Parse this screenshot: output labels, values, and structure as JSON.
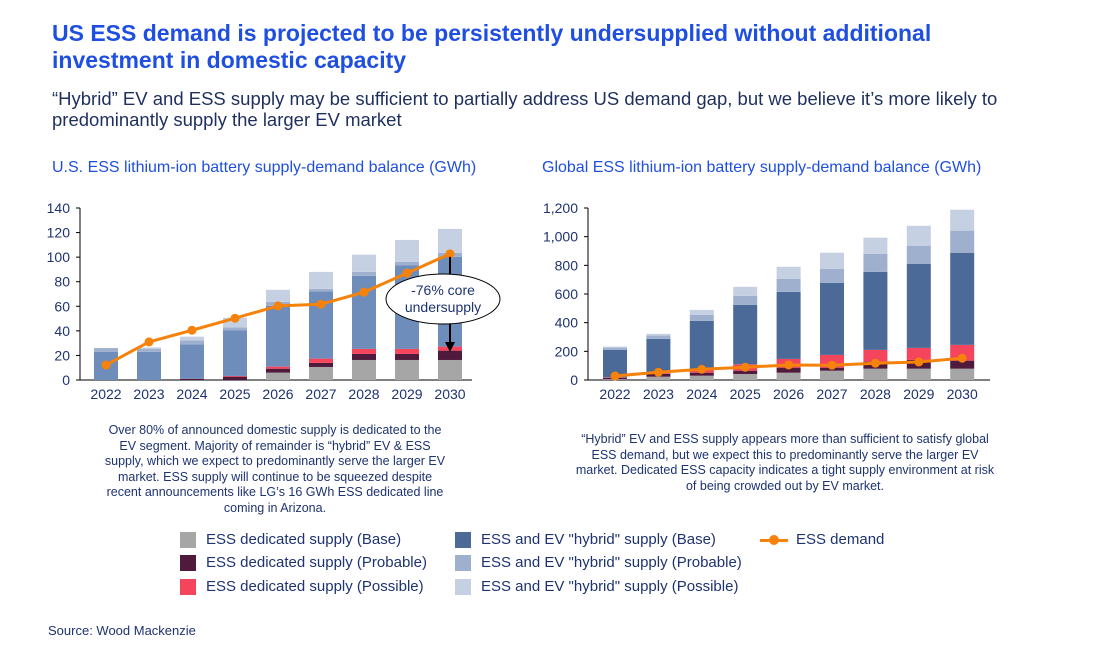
{
  "header": {
    "title": "US ESS demand is projected to be persistently undersupplied without additional investment in domestic capacity",
    "subtitle": "“Hybrid” EV and ESS supply may be sufficient to partially address US demand gap, but we believe it’s more likely to predominantly supply the larger EV market"
  },
  "colors": {
    "ded_base": "#a6a6a6",
    "ded_prob": "#4f1a3c",
    "ded_poss": "#f5455c",
    "hyb_base": "#4b6a98",
    "hyb_prob": "#9eb0cd",
    "hyb_poss": "#c5d0e2",
    "hyb_base_us": "#6f8dbb",
    "demand": "#f5820a",
    "title": "#1f4fe0",
    "text": "#1e3370"
  },
  "chart_data": [
    {
      "type": "bar",
      "stacked": true,
      "title": "U.S. ESS lithium-ion battery supply-demand balance (GWh)",
      "categories": [
        "2022",
        "2023",
        "2024",
        "2025",
        "2026",
        "2027",
        "2028",
        "2029",
        "2030"
      ],
      "ylim": [
        0,
        140
      ],
      "yticks": [
        "0",
        "20",
        "40",
        "60",
        "80",
        "100",
        "120",
        "140"
      ],
      "grid": false,
      "series": [
        {
          "name": "ESS dedicated supply (Base)",
          "key": "ded_base",
          "values": [
            0,
            0,
            0,
            0,
            6,
            10.6,
            16.3,
            16.3,
            16.3
          ]
        },
        {
          "name": "ESS dedicated supply (Probable)",
          "key": "ded_prob",
          "values": [
            0,
            0,
            1,
            2.7,
            3.2,
            3.3,
            4.9,
            4.9,
            7.6
          ]
        },
        {
          "name": "ESS dedicated supply (Possible)",
          "key": "ded_poss",
          "values": [
            0,
            0,
            0,
            0.6,
            1.7,
            3.5,
            4.1,
            4.1,
            3.3
          ]
        },
        {
          "name": "ESS and EV \"hybrid\" supply (Base)",
          "key": "hyb_base",
          "values": [
            23,
            23,
            28,
            37,
            49.4,
            54.6,
            59.5,
            67.9,
            73.1
          ]
        },
        {
          "name": "ESS and EV \"hybrid\" supply (Probable)",
          "key": "hyb_prob",
          "values": [
            3,
            2.5,
            3.3,
            2.4,
            3.3,
            2.2,
            3.2,
            3,
            3.2
          ]
        },
        {
          "name": "ESS and EV \"hybrid\" supply (Possible)",
          "key": "hyb_poss",
          "values": [
            0,
            1,
            3,
            8,
            9.8,
            13.8,
            14,
            17.8,
            19.5
          ]
        }
      ],
      "line": {
        "name": "ESS demand",
        "values": [
          12.2,
          31,
          40.5,
          50.3,
          60.3,
          61.7,
          71.5,
          87,
          102.7
        ]
      },
      "annotation": "-76% core undersupply",
      "caption": "Over 80% of announced domestic supply is dedicated to the EV segment. Majority of remainder is “hybrid” EV & ESS supply, which we expect to predominantly serve the larger EV market. ESS supply will continue to be squeezed despite recent announcements like LG’s 16 GWh ESS dedicated line coming in Arizona."
    },
    {
      "type": "bar",
      "stacked": true,
      "title": "Global ESS lithium-ion battery supply-demand balance (GWh)",
      "categories": [
        "2022",
        "2023",
        "2024",
        "2025",
        "2026",
        "2027",
        "2028",
        "2029",
        "2030"
      ],
      "ylim": [
        0,
        1200
      ],
      "yticks": [
        "0",
        "200",
        "400",
        "600",
        "800",
        "1,000",
        "1,200"
      ],
      "grid": false,
      "series": [
        {
          "name": "ESS dedicated supply (Base)",
          "key": "ded_base",
          "values": [
            5,
            23,
            30,
            42,
            51,
            65,
            79,
            79,
            79
          ]
        },
        {
          "name": "ESS dedicated supply (Probable)",
          "key": "ded_prob",
          "values": [
            10,
            19,
            21,
            23,
            35,
            21,
            49,
            61,
            56
          ]
        },
        {
          "name": "ESS dedicated supply (Possible)",
          "key": "ded_poss",
          "values": [
            3,
            5,
            19,
            45,
            61,
            89,
            82,
            84,
            110
          ]
        },
        {
          "name": "ESS and EV \"hybrid\" supply (Base)",
          "key": "hyb_base",
          "values": [
            192,
            240,
            342,
            414,
            468,
            503,
            545,
            587,
            643
          ]
        },
        {
          "name": "ESS and EV \"hybrid\" supply (Probable)",
          "key": "hyb_prob",
          "values": [
            16,
            23,
            42,
            63,
            91,
            98,
            126,
            126,
            154
          ]
        },
        {
          "name": "ESS and EV \"hybrid\" supply (Possible)",
          "key": "hyb_poss",
          "values": [
            7,
            12,
            35,
            63,
            84,
            112,
            112,
            139,
            146
          ]
        }
      ],
      "line": {
        "name": "ESS demand",
        "values": [
          28,
          54,
          75,
          89,
          105,
          103,
          117,
          126,
          152
        ]
      },
      "caption": "“Hybrid” EV and ESS supply appears more than sufficient to satisfy global ESS demand, but we expect this to predominantly serve the larger EV market. Dedicated ESS capacity indicates a tight supply environment at risk of being crowded out by EV market."
    }
  ],
  "legend": [
    "ESS dedicated supply (Base)",
    "ESS dedicated supply (Probable)",
    "ESS dedicated supply (Possible)",
    "ESS and EV \"hybrid\" supply (Base)",
    "ESS and EV \"hybrid\" supply (Probable)",
    "ESS and EV \"hybrid\" supply (Possible)",
    "ESS demand"
  ],
  "source": "Source: Wood Mackenzie"
}
